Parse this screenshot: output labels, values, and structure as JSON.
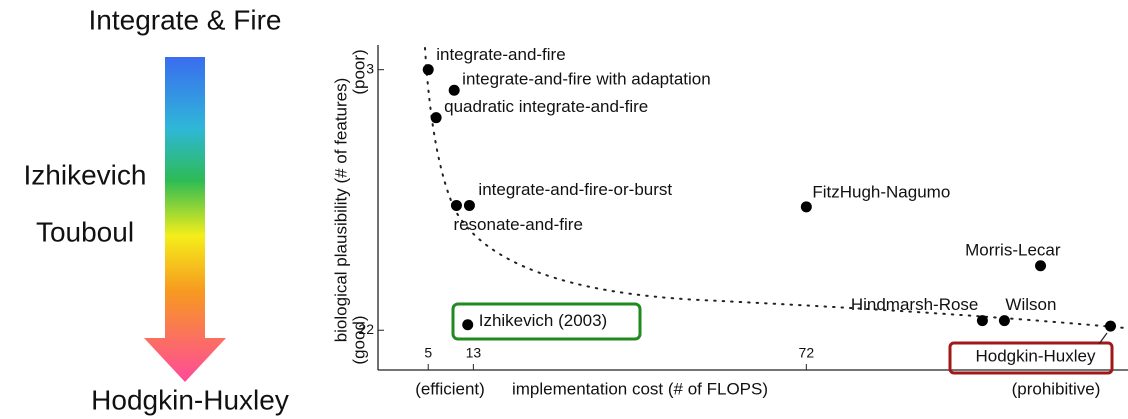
{
  "sidebar": {
    "top": "Integrate & Fire",
    "middle": [
      "Izhikevich",
      "Touboul"
    ],
    "bottom": "Hodgkin-Huxley"
  },
  "chart_data": {
    "type": "scatter",
    "xlabel": "implementation cost (# of FLOPS)",
    "ylabel": "biological plausibility (# of features)",
    "x_ends": [
      "(efficient)",
      "(prohibitive)"
    ],
    "y_ends": [
      "(poor)",
      "(good)"
    ],
    "xlim": [
      -3.9,
      129
    ],
    "xticks": [
      5,
      13,
      72
    ],
    "ylim": [
      1.2,
      24.9
    ],
    "y_inverted": true,
    "yticks": [
      3,
      22
    ],
    "color": "#000000",
    "points": {
      "labels": [
        "integrate-and-fire",
        "integrate-and-fire with adaptation",
        "quadratic integrate-and-fire",
        "integrate-and-fire-or-burst",
        "resonate-and-fire",
        "FitzHugh-Nagumo",
        "Morris-Lecar",
        "Hindmarsh-Rose",
        "Wilson",
        "Hodgkin-Huxley",
        "Izhikevich (2003)"
      ],
      "x": [
        5,
        9.6,
        6.4,
        12.3,
        10,
        72,
        113.5,
        103.2,
        107.1,
        125.9,
        12
      ],
      "y": [
        3,
        4.5,
        6.5,
        12.9,
        12.9,
        13,
        17.3,
        21.3,
        21.3,
        21.7,
        21.6
      ]
    }
  }
}
